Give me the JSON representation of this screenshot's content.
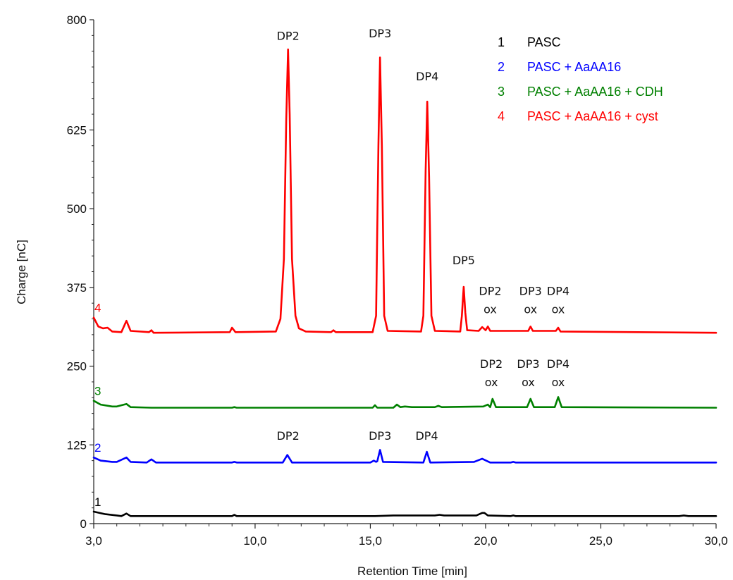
{
  "chart_data": {
    "type": "line",
    "xlabel": "Retention Time [min]",
    "ylabel": "Charge [nC]",
    "xlim": [
      3.0,
      30.0
    ],
    "ylim": [
      0,
      800
    ],
    "x_ticks": [
      "3,0",
      "10,0",
      "15,0",
      "20,0",
      "25,0",
      "30,0"
    ],
    "x_tick_values": [
      3,
      10,
      15,
      20,
      25,
      30
    ],
    "y_ticks": [
      "0",
      "125",
      "250",
      "375",
      "500",
      "625",
      "800"
    ],
    "y_tick_values": [
      0,
      125,
      250,
      375,
      500,
      625,
      800
    ],
    "grid": false,
    "legend_position": "top-right",
    "series": [
      {
        "number": "1",
        "name": "PASC",
        "color": "#000000",
        "baseline": 12,
        "points": [
          [
            3.0,
            19
          ],
          [
            3.5,
            15
          ],
          [
            4.0,
            13
          ],
          [
            4.2,
            12
          ],
          [
            4.42,
            16
          ],
          [
            4.6,
            12
          ],
          [
            5.5,
            12
          ],
          [
            9.0,
            12
          ],
          [
            9.1,
            14
          ],
          [
            9.2,
            12
          ],
          [
            15.2,
            12
          ],
          [
            16.0,
            13
          ],
          [
            17.8,
            13
          ],
          [
            18.0,
            14
          ],
          [
            18.2,
            13
          ],
          [
            19.6,
            13
          ],
          [
            19.85,
            17
          ],
          [
            19.95,
            17
          ],
          [
            20.1,
            13
          ],
          [
            21.1,
            12
          ],
          [
            21.2,
            13
          ],
          [
            21.3,
            12
          ],
          [
            28.4,
            12
          ],
          [
            28.6,
            13
          ],
          [
            28.8,
            12
          ],
          [
            30.0,
            12
          ]
        ]
      },
      {
        "number": "2",
        "name": "PASC + AaAA16",
        "color": "#0000ff",
        "baseline": 97,
        "points": [
          [
            3.0,
            105
          ],
          [
            3.3,
            100
          ],
          [
            3.8,
            98
          ],
          [
            4.0,
            98
          ],
          [
            4.42,
            105
          ],
          [
            4.6,
            98
          ],
          [
            5.3,
            97
          ],
          [
            5.5,
            102
          ],
          [
            5.7,
            97
          ],
          [
            9.0,
            97
          ],
          [
            9.1,
            98
          ],
          [
            9.2,
            97
          ],
          [
            11.2,
            97
          ],
          [
            11.4,
            109
          ],
          [
            11.6,
            97
          ],
          [
            15.0,
            97
          ],
          [
            15.15,
            100
          ],
          [
            15.25,
            98
          ],
          [
            15.3,
            99
          ],
          [
            15.42,
            117
          ],
          [
            15.55,
            98
          ],
          [
            17.3,
            97
          ],
          [
            17.45,
            114
          ],
          [
            17.6,
            97
          ],
          [
            19.5,
            98
          ],
          [
            19.85,
            103
          ],
          [
            20.2,
            97
          ],
          [
            21.1,
            97
          ],
          [
            21.2,
            98
          ],
          [
            21.3,
            97
          ],
          [
            30.0,
            97
          ]
        ]
      },
      {
        "number": "3",
        "name": "PASC + AaAA16 + CDH",
        "color": "#008000",
        "baseline": 184,
        "points": [
          [
            3.0,
            195
          ],
          [
            3.3,
            189
          ],
          [
            3.8,
            186
          ],
          [
            4.0,
            186
          ],
          [
            4.42,
            190
          ],
          [
            4.6,
            185
          ],
          [
            5.5,
            184
          ],
          [
            9.0,
            184
          ],
          [
            9.1,
            185
          ],
          [
            9.2,
            184
          ],
          [
            15.1,
            184
          ],
          [
            15.2,
            188
          ],
          [
            15.3,
            184
          ],
          [
            16.0,
            184
          ],
          [
            16.15,
            189
          ],
          [
            16.3,
            185
          ],
          [
            16.5,
            186
          ],
          [
            16.8,
            185
          ],
          [
            17.8,
            185
          ],
          [
            17.95,
            187
          ],
          [
            18.1,
            185
          ],
          [
            19.9,
            186
          ],
          [
            20.1,
            189
          ],
          [
            20.2,
            185
          ],
          [
            20.3,
            198
          ],
          [
            20.45,
            185
          ],
          [
            21.8,
            185
          ],
          [
            21.95,
            198
          ],
          [
            22.1,
            185
          ],
          [
            23.0,
            185
          ],
          [
            23.15,
            201
          ],
          [
            23.3,
            185
          ],
          [
            30.0,
            184
          ]
        ]
      },
      {
        "number": "4",
        "name": "PASC + AaAA16 + cyst",
        "color": "#ff0000",
        "baseline": 303,
        "points": [
          [
            3.0,
            327
          ],
          [
            3.2,
            313
          ],
          [
            3.4,
            310
          ],
          [
            3.6,
            311
          ],
          [
            3.8,
            305
          ],
          [
            4.2,
            304
          ],
          [
            4.42,
            322
          ],
          [
            4.6,
            306
          ],
          [
            5.4,
            304
          ],
          [
            5.5,
            307
          ],
          [
            5.6,
            303
          ],
          [
            8.9,
            304
          ],
          [
            9.0,
            311
          ],
          [
            9.15,
            304
          ],
          [
            10.9,
            305
          ],
          [
            11.1,
            325
          ],
          [
            11.25,
            420
          ],
          [
            11.35,
            640
          ],
          [
            11.43,
            753
          ],
          [
            11.5,
            650
          ],
          [
            11.6,
            420
          ],
          [
            11.75,
            330
          ],
          [
            11.9,
            310
          ],
          [
            12.2,
            305
          ],
          [
            13.3,
            304
          ],
          [
            13.4,
            307
          ],
          [
            13.5,
            304
          ],
          [
            15.1,
            304
          ],
          [
            15.25,
            330
          ],
          [
            15.35,
            600
          ],
          [
            15.42,
            740
          ],
          [
            15.5,
            600
          ],
          [
            15.6,
            330
          ],
          [
            15.75,
            306
          ],
          [
            17.2,
            305
          ],
          [
            17.3,
            330
          ],
          [
            17.4,
            560
          ],
          [
            17.47,
            670
          ],
          [
            17.55,
            550
          ],
          [
            17.65,
            330
          ],
          [
            17.8,
            306
          ],
          [
            18.9,
            305
          ],
          [
            18.97,
            330
          ],
          [
            19.05,
            376
          ],
          [
            19.12,
            335
          ],
          [
            19.2,
            307
          ],
          [
            19.7,
            306
          ],
          [
            19.85,
            312
          ],
          [
            20.0,
            307
          ],
          [
            20.1,
            313
          ],
          [
            20.2,
            306
          ],
          [
            21.85,
            306
          ],
          [
            21.95,
            313
          ],
          [
            22.05,
            306
          ],
          [
            23.05,
            306
          ],
          [
            23.15,
            311
          ],
          [
            23.25,
            305
          ],
          [
            30.0,
            303
          ]
        ]
      }
    ],
    "annotations": [
      {
        "x": 11.43,
        "y": 768,
        "lines": [
          "DP2"
        ]
      },
      {
        "x": 15.42,
        "y": 772,
        "lines": [
          "DP3"
        ]
      },
      {
        "x": 17.47,
        "y": 704,
        "lines": [
          "DP4"
        ]
      },
      {
        "x": 19.05,
        "y": 412,
        "lines": [
          "DP5"
        ]
      },
      {
        "x": 20.2,
        "y": 363,
        "lines": [
          "DP2",
          "ox"
        ]
      },
      {
        "x": 21.95,
        "y": 363,
        "lines": [
          "DP3",
          "ox"
        ]
      },
      {
        "x": 23.15,
        "y": 363,
        "lines": [
          "DP4",
          "ox"
        ]
      },
      {
        "x": 20.25,
        "y": 247,
        "lines": [
          "DP2",
          "ox"
        ]
      },
      {
        "x": 21.85,
        "y": 247,
        "lines": [
          "DP3",
          "ox"
        ]
      },
      {
        "x": 23.15,
        "y": 247,
        "lines": [
          "DP4",
          "ox"
        ]
      },
      {
        "x": 11.43,
        "y": 133,
        "lines": [
          "DP2"
        ]
      },
      {
        "x": 15.42,
        "y": 133,
        "lines": [
          "DP3"
        ]
      },
      {
        "x": 17.45,
        "y": 133,
        "lines": [
          "DP4"
        ]
      }
    ]
  }
}
